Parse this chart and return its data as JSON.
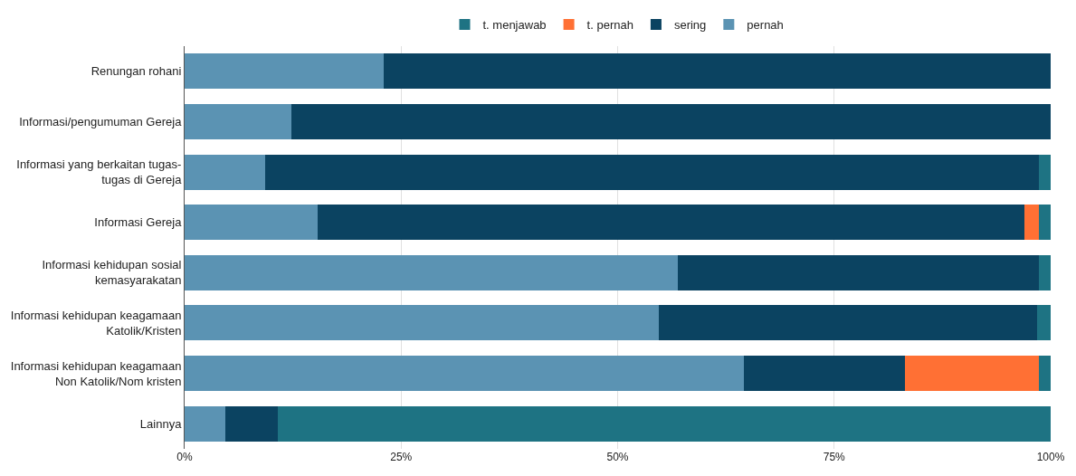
{
  "chart_data": {
    "type": "bar",
    "orientation": "horizontal",
    "stacked": true,
    "categories": [
      "Renungan rohani",
      "Informasi/pengumuman Gereja",
      "Informasi yang berkaitan tugas-\ntugas di Gereja",
      "Informasi Gereja",
      "Informasi kehidupan sosial\nkemasyarakatan",
      "Informasi kehidupan keagamaan\nKatolik/Kristen",
      "Informasi kehidupan keagamaan\nNon Katolik/Nom kristen",
      "Lainnya"
    ],
    "series": [
      {
        "name": "pernah",
        "color": "#5b93b3",
        "values": [
          23.0,
          12.3,
          9.3,
          15.4,
          57.0,
          54.8,
          64.6,
          4.7
        ]
      },
      {
        "name": "sering",
        "color": "#0b4361",
        "values": [
          77.0,
          87.7,
          89.3,
          81.6,
          41.6,
          43.6,
          18.6,
          6.1
        ]
      },
      {
        "name": "t. pernah",
        "color": "#ff7034",
        "values": [
          0,
          0,
          0,
          1.6,
          0,
          0,
          15.4,
          0
        ]
      },
      {
        "name": "t. menjawab",
        "color": "#1e7383",
        "values": [
          0,
          0,
          1.4,
          1.4,
          1.4,
          1.6,
          1.4,
          89.2
        ]
      }
    ],
    "xlim": [
      0,
      100
    ],
    "xticks": [
      {
        "value": 0,
        "label": "0%"
      },
      {
        "value": 25,
        "label": "25%"
      },
      {
        "value": 50,
        "label": "50%"
      },
      {
        "value": 75,
        "label": "75%"
      },
      {
        "value": 100,
        "label": "100%"
      }
    ],
    "grid": "x",
    "legend": "top"
  }
}
